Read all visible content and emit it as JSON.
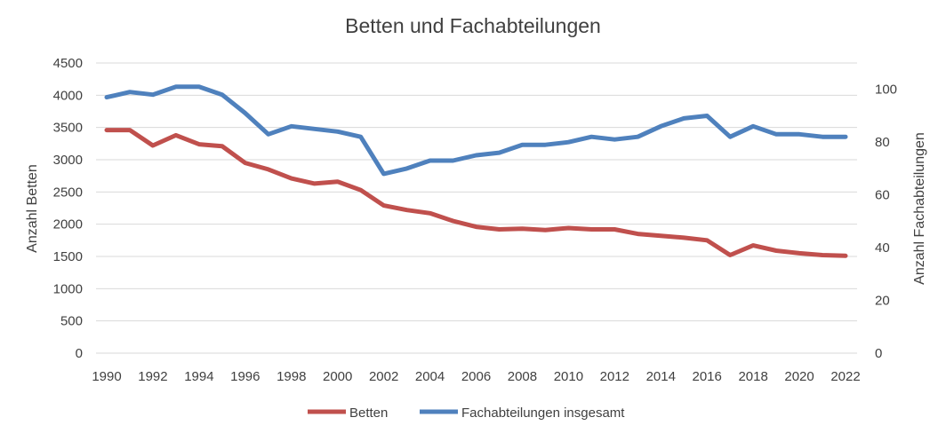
{
  "chart_data": {
    "type": "line",
    "title": "Betten und Fachabteilungen",
    "xlabel": "",
    "ylabel": "Anzahl Betten",
    "y2label": "Anzahl Fachabteilungen",
    "ylim": [
      0,
      4500
    ],
    "y2lim": [
      0,
      110
    ],
    "yticks": [
      "0",
      "500",
      "1000",
      "1500",
      "2000",
      "2500",
      "3000",
      "3500",
      "4000",
      "4500"
    ],
    "y2ticks": [
      "0",
      "20",
      "40",
      "60",
      "80",
      "100"
    ],
    "xticks": [
      "1990",
      "1992",
      "1994",
      "1996",
      "1998",
      "2000",
      "2002",
      "2004",
      "2006",
      "2008",
      "2010",
      "2012",
      "2014",
      "2016",
      "2018",
      "2020",
      "2022"
    ],
    "grid": true,
    "legend_position": "bottom",
    "x": [
      1990,
      1991,
      1992,
      1993,
      1994,
      1995,
      1996,
      1997,
      1998,
      1999,
      2000,
      2001,
      2002,
      2003,
      2004,
      2005,
      2006,
      2007,
      2008,
      2009,
      2010,
      2011,
      2012,
      2013,
      2014,
      2015,
      2016,
      2017,
      2018,
      2019,
      2020,
      2021,
      2022
    ],
    "series": [
      {
        "name": "Betten",
        "axis": "left",
        "color": "#C0504D",
        "values": [
          3460,
          3460,
          3220,
          3380,
          3240,
          3210,
          2950,
          2850,
          2710,
          2630,
          2660,
          2530,
          2290,
          2220,
          2170,
          2050,
          1960,
          1920,
          1930,
          1910,
          1940,
          1920,
          1920,
          1850,
          1820,
          1790,
          1750,
          1520,
          1670,
          1590,
          1550,
          1520,
          1510
        ]
      },
      {
        "name": "Fachabteilungen insgesamt",
        "axis": "right",
        "color": "#4F81BD",
        "values": [
          97,
          99,
          98,
          101,
          101,
          98,
          91,
          83,
          86,
          85,
          84,
          82,
          68,
          70,
          73,
          73,
          75,
          76,
          79,
          79,
          80,
          82,
          81,
          82,
          86,
          89,
          90,
          82,
          86,
          83,
          83,
          82,
          82
        ]
      }
    ]
  }
}
